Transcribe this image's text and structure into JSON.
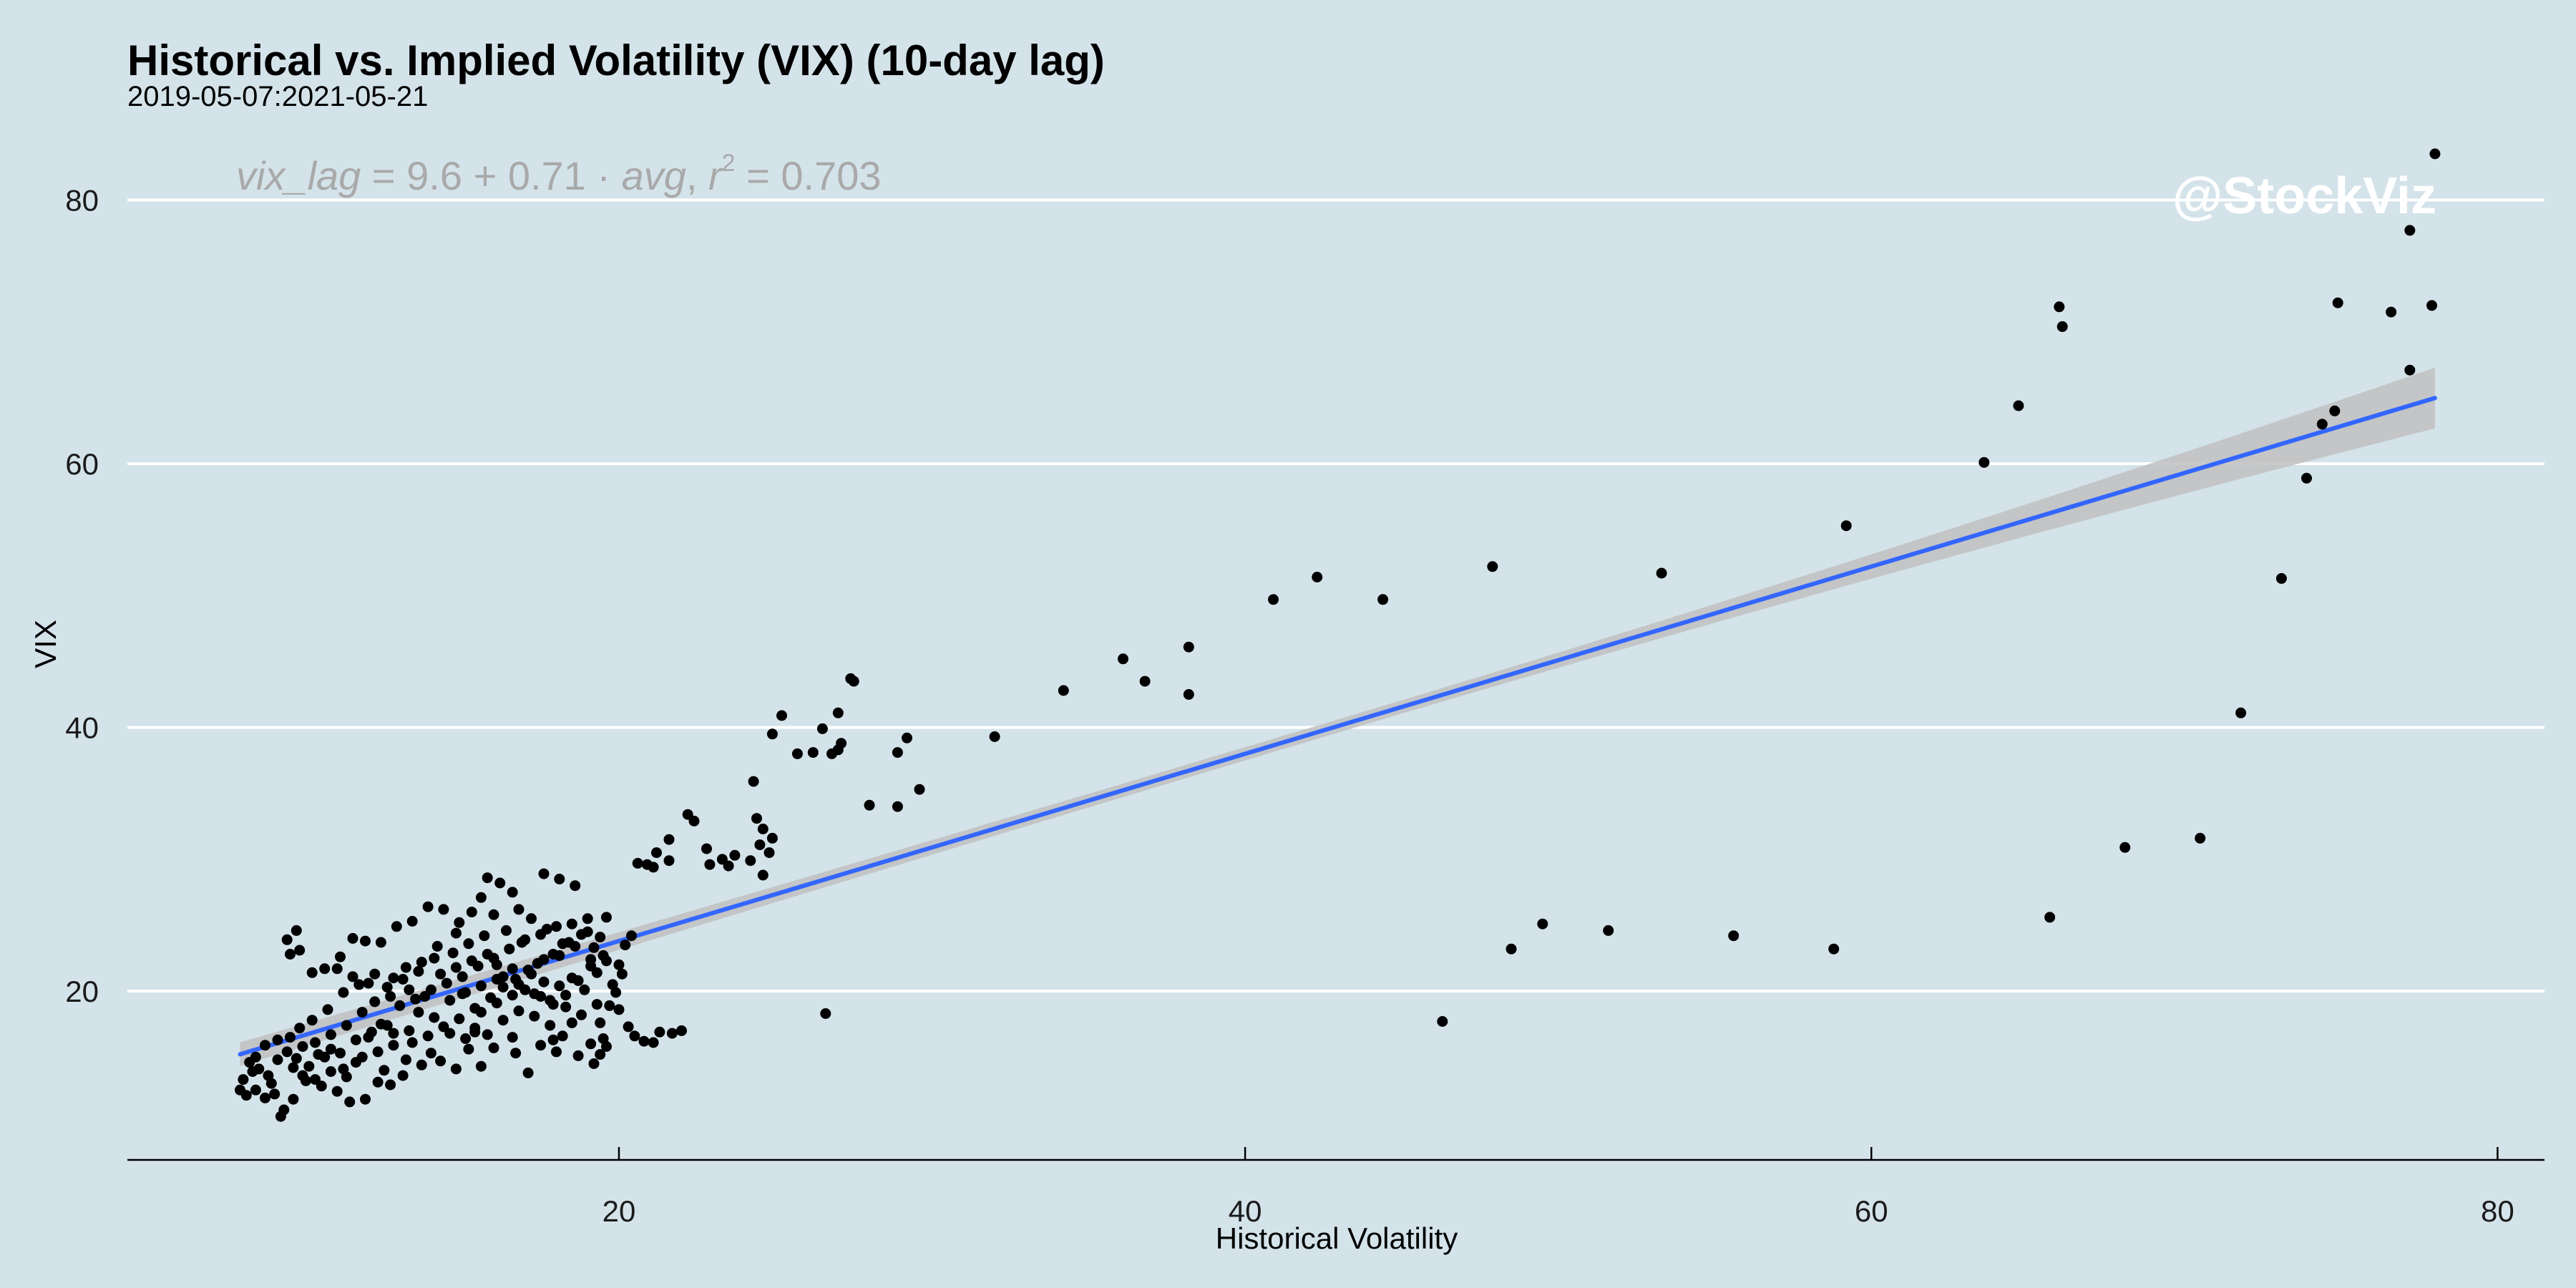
{
  "chart_data": {
    "type": "scatter",
    "title": "Historical vs. Implied Volatility (VIX) (10-day lag)",
    "subtitle": "2019-05-07:2021-05-21",
    "xlabel": "Historical Volatility",
    "ylabel": "VIX",
    "xlim": [
      4.3,
      81.5
    ],
    "ylim": [
      7.2,
      85.4
    ],
    "x_ticks": [
      20,
      40,
      60,
      80
    ],
    "y_ticks": [
      20,
      40,
      60,
      80
    ],
    "grid": "horizontal major lines",
    "equation": {
      "lhs": "vix_lag",
      "rhs_prefix": "9.6 + 0.71 · ",
      "rhs_var": "avg",
      "r2_label": "r",
      "r2_exp": "2",
      "r2_value": " = 0.703"
    },
    "watermark": "@StockViz",
    "regression": {
      "intercept": 9.6,
      "slope": 0.71,
      "x_range": [
        7.9,
        78.0
      ],
      "band_halfwidth_start": 0.9,
      "band_halfwidth_mid": 0.5,
      "band_halfwidth_end": 2.3
    },
    "colors": {
      "background": "#d4e3ea",
      "grid": "#ffffff",
      "point": "#000000",
      "line": "#3366ff",
      "band": "#bfbfbf",
      "equation": "#a9a9a9"
    },
    "points": [
      [
        78.0,
        83.5
      ],
      [
        77.2,
        77.7
      ],
      [
        77.9,
        72.0
      ],
      [
        76.6,
        71.5
      ],
      [
        74.9,
        72.2
      ],
      [
        66.0,
        71.9
      ],
      [
        66.1,
        70.4
      ],
      [
        77.2,
        67.1
      ],
      [
        64.7,
        64.4
      ],
      [
        74.8,
        64.0
      ],
      [
        74.4,
        63.0
      ],
      [
        63.6,
        60.1
      ],
      [
        73.9,
        58.9
      ],
      [
        59.2,
        55.3
      ],
      [
        47.9,
        52.2
      ],
      [
        53.3,
        51.7
      ],
      [
        42.3,
        51.4
      ],
      [
        73.1,
        51.3
      ],
      [
        40.9,
        49.7
      ],
      [
        44.4,
        49.7
      ],
      [
        36.1,
        45.2
      ],
      [
        36.8,
        43.5
      ],
      [
        38.2,
        46.1
      ],
      [
        38.2,
        42.5
      ],
      [
        34.2,
        42.8
      ],
      [
        71.8,
        41.1
      ],
      [
        32.0,
        39.3
      ],
      [
        27.5,
        43.5
      ],
      [
        27.4,
        43.7
      ],
      [
        27.0,
        41.1
      ],
      [
        25.2,
        40.9
      ],
      [
        24.9,
        39.5
      ],
      [
        26.5,
        39.9
      ],
      [
        27.1,
        38.8
      ],
      [
        27.0,
        38.3
      ],
      [
        26.8,
        38.0
      ],
      [
        26.2,
        38.1
      ],
      [
        25.7,
        38.0
      ],
      [
        28.9,
        38.1
      ],
      [
        29.2,
        39.2
      ],
      [
        29.6,
        35.3
      ],
      [
        28.0,
        34.1
      ],
      [
        28.9,
        34.0
      ],
      [
        24.3,
        35.9
      ],
      [
        70.5,
        31.6
      ],
      [
        68.1,
        30.9
      ],
      [
        65.7,
        25.6
      ],
      [
        49.5,
        25.1
      ],
      [
        51.6,
        24.6
      ],
      [
        55.6,
        24.2
      ],
      [
        58.8,
        23.2
      ],
      [
        48.5,
        23.2
      ],
      [
        46.3,
        17.7
      ],
      [
        26.6,
        18.3
      ],
      [
        24.4,
        33.1
      ],
      [
        24.6,
        32.3
      ],
      [
        24.5,
        31.1
      ],
      [
        24.8,
        30.5
      ],
      [
        24.9,
        31.6
      ],
      [
        24.2,
        29.9
      ],
      [
        23.7,
        30.3
      ],
      [
        23.3,
        30.0
      ],
      [
        22.9,
        29.6
      ],
      [
        22.2,
        33.4
      ],
      [
        22.4,
        32.9
      ],
      [
        21.6,
        31.5
      ],
      [
        21.2,
        30.5
      ],
      [
        21.6,
        29.9
      ],
      [
        22.8,
        30.8
      ],
      [
        20.6,
        29.7
      ],
      [
        20.9,
        29.6
      ],
      [
        21.1,
        29.4
      ],
      [
        24.6,
        28.8
      ],
      [
        23.5,
        29.5
      ],
      [
        20.4,
        24.2
      ],
      [
        20.2,
        23.5
      ],
      [
        20.0,
        22.0
      ],
      [
        19.8,
        20.5
      ],
      [
        20.1,
        21.3
      ],
      [
        20.0,
        18.6
      ],
      [
        20.3,
        17.3
      ],
      [
        20.5,
        16.6
      ],
      [
        20.8,
        16.2
      ],
      [
        21.3,
        16.9
      ],
      [
        21.7,
        16.8
      ],
      [
        22.0,
        17.0
      ],
      [
        21.1,
        16.1
      ],
      [
        19.6,
        15.8
      ],
      [
        19.5,
        16.4
      ],
      [
        19.4,
        15.2
      ],
      [
        19.2,
        14.5
      ],
      [
        18.5,
        17.6
      ],
      [
        18.0,
        15.4
      ],
      [
        17.5,
        15.9
      ],
      [
        17.1,
        13.8
      ],
      [
        16.6,
        16.5
      ],
      [
        16.0,
        15.7
      ],
      [
        15.6,
        14.3
      ],
      [
        15.2,
        15.6
      ],
      [
        14.8,
        14.1
      ],
      [
        14.3,
        14.7
      ],
      [
        13.7,
        14.4
      ],
      [
        13.1,
        13.6
      ],
      [
        12.7,
        12.9
      ],
      [
        12.3,
        13.1
      ],
      [
        11.9,
        11.8
      ],
      [
        11.4,
        11.6
      ],
      [
        11.0,
        12.4
      ],
      [
        10.5,
        12.8
      ],
      [
        10.0,
        13.2
      ],
      [
        9.6,
        11.8
      ],
      [
        9.3,
        11.0
      ],
      [
        9.2,
        10.5
      ],
      [
        9.0,
        12.2
      ],
      [
        8.7,
        11.9
      ],
      [
        8.4,
        12.5
      ],
      [
        8.1,
        12.1
      ],
      [
        7.9,
        12.5
      ],
      [
        8.0,
        13.3
      ],
      [
        8.3,
        13.9
      ],
      [
        8.5,
        14.1
      ],
      [
        8.8,
        13.6
      ],
      [
        9.1,
        14.8
      ],
      [
        9.4,
        15.4
      ],
      [
        9.7,
        14.9
      ],
      [
        10.1,
        14.3
      ],
      [
        10.4,
        15.2
      ],
      [
        10.8,
        15.6
      ],
      [
        11.2,
        14.1
      ],
      [
        11.6,
        14.6
      ],
      [
        12.0,
        16.5
      ],
      [
        12.4,
        17.5
      ],
      [
        12.8,
        16.8
      ],
      [
        13.3,
        17.0
      ],
      [
        13.6,
        18.4
      ],
      [
        14.1,
        18.0
      ],
      [
        14.6,
        19.3
      ],
      [
        15.0,
        19.8
      ],
      [
        15.4,
        18.7
      ],
      [
        15.9,
        19.5
      ],
      [
        16.3,
        20.3
      ],
      [
        16.7,
        20.9
      ],
      [
        17.2,
        21.3
      ],
      [
        17.6,
        20.7
      ],
      [
        18.1,
        20.4
      ],
      [
        18.5,
        21.0
      ],
      [
        18.9,
        20.1
      ],
      [
        19.3,
        21.4
      ],
      [
        19.6,
        22.3
      ],
      [
        19.2,
        23.3
      ],
      [
        18.8,
        24.3
      ],
      [
        18.4,
        23.7
      ],
      [
        17.9,
        22.8
      ],
      [
        17.4,
        22.1
      ],
      [
        16.9,
        23.7
      ],
      [
        16.4,
        24.6
      ],
      [
        16.0,
        25.8
      ],
      [
        15.6,
        27.1
      ],
      [
        15.8,
        28.6
      ],
      [
        16.2,
        28.2
      ],
      [
        16.6,
        27.5
      ],
      [
        17.6,
        28.9
      ],
      [
        18.1,
        28.5
      ],
      [
        18.6,
        28.0
      ],
      [
        19.0,
        25.5
      ],
      [
        19.6,
        25.6
      ],
      [
        14.9,
        25.2
      ],
      [
        14.4,
        26.2
      ],
      [
        13.9,
        26.4
      ],
      [
        13.4,
        25.3
      ],
      [
        12.9,
        24.9
      ],
      [
        12.4,
        23.7
      ],
      [
        11.9,
        23.8
      ],
      [
        11.5,
        24.0
      ],
      [
        11.1,
        22.6
      ],
      [
        10.6,
        21.7
      ],
      [
        10.2,
        21.4
      ],
      [
        9.8,
        23.1
      ],
      [
        9.5,
        22.8
      ],
      [
        9.4,
        23.9
      ],
      [
        9.7,
        24.6
      ],
      [
        11.0,
        21.7
      ],
      [
        11.5,
        21.1
      ],
      [
        12.0,
        20.6
      ],
      [
        12.6,
        20.3
      ],
      [
        13.1,
        20.9
      ],
      [
        13.6,
        21.5
      ],
      [
        14.1,
        22.5
      ],
      [
        14.7,
        22.9
      ],
      [
        15.2,
        23.6
      ],
      [
        15.7,
        24.2
      ],
      [
        16.1,
        22.0
      ],
      [
        16.6,
        21.7
      ],
      [
        17.0,
        20.1
      ],
      [
        17.5,
        19.6
      ],
      [
        17.9,
        19.0
      ],
      [
        18.3,
        19.7
      ],
      [
        18.7,
        20.8
      ],
      [
        19.1,
        21.9
      ],
      [
        19.5,
        22.7
      ],
      [
        18.2,
        23.6
      ],
      [
        17.7,
        24.7
      ],
      [
        17.2,
        25.5
      ],
      [
        16.8,
        26.2
      ],
      [
        15.3,
        26.0
      ],
      [
        14.8,
        24.4
      ],
      [
        14.2,
        23.4
      ],
      [
        13.7,
        22.2
      ],
      [
        13.2,
        21.8
      ],
      [
        12.7,
        19.6
      ],
      [
        12.2,
        19.2
      ],
      [
        11.8,
        18.4
      ],
      [
        11.3,
        17.4
      ],
      [
        10.8,
        16.7
      ],
      [
        10.3,
        16.1
      ],
      [
        9.9,
        15.8
      ],
      [
        9.5,
        16.5
      ],
      [
        9.1,
        16.3
      ],
      [
        8.7,
        15.9
      ],
      [
        8.4,
        15.0
      ],
      [
        8.2,
        14.6
      ],
      [
        9.9,
        13.6
      ],
      [
        10.3,
        13.3
      ],
      [
        10.8,
        13.9
      ],
      [
        11.3,
        13.5
      ],
      [
        11.8,
        15.0
      ],
      [
        12.3,
        15.4
      ],
      [
        12.8,
        15.9
      ],
      [
        13.4,
        16.1
      ],
      [
        13.9,
        16.6
      ],
      [
        14.4,
        17.3
      ],
      [
        14.9,
        17.9
      ],
      [
        15.4,
        17.2
      ],
      [
        15.8,
        16.7
      ],
      [
        16.3,
        17.8
      ],
      [
        16.8,
        18.5
      ],
      [
        17.3,
        18.1
      ],
      [
        17.8,
        17.4
      ],
      [
        18.2,
        16.6
      ],
      [
        18.7,
        15.1
      ],
      [
        19.1,
        16.0
      ],
      [
        19.4,
        17.6
      ],
      [
        19.7,
        18.9
      ],
      [
        19.9,
        19.9
      ],
      [
        13.0,
        18.9
      ],
      [
        13.5,
        19.4
      ],
      [
        14.0,
        20.1
      ],
      [
        14.5,
        20.6
      ],
      [
        15.0,
        21.1
      ],
      [
        15.5,
        21.9
      ],
      [
        16.0,
        22.5
      ],
      [
        16.5,
        23.2
      ],
      [
        17.0,
        23.9
      ],
      [
        17.5,
        24.3
      ],
      [
        18.0,
        24.9
      ],
      [
        18.5,
        25.1
      ],
      [
        19.0,
        24.5
      ],
      [
        19.4,
        24.1
      ],
      [
        14.3,
        21.3
      ],
      [
        14.8,
        21.8
      ],
      [
        15.3,
        22.3
      ],
      [
        15.8,
        22.8
      ],
      [
        16.3,
        21.1
      ],
      [
        16.8,
        20.5
      ],
      [
        17.3,
        19.8
      ],
      [
        17.8,
        19.3
      ],
      [
        18.3,
        18.8
      ],
      [
        18.8,
        18.2
      ],
      [
        19.3,
        19.0
      ],
      [
        15.1,
        19.9
      ],
      [
        15.6,
        20.4
      ],
      [
        16.1,
        20.9
      ],
      [
        13.8,
        19.6
      ],
      [
        13.3,
        20.1
      ],
      [
        12.8,
        21.0
      ],
      [
        12.2,
        21.3
      ],
      [
        11.7,
        20.5
      ],
      [
        11.2,
        19.9
      ],
      [
        10.7,
        18.6
      ],
      [
        10.2,
        17.8
      ],
      [
        9.8,
        17.2
      ],
      [
        11.6,
        16.3
      ],
      [
        12.1,
        16.9
      ],
      [
        12.6,
        17.4
      ],
      [
        14.6,
        16.8
      ],
      [
        15.1,
        16.4
      ],
      [
        15.6,
        18.4
      ],
      [
        16.1,
        19.1
      ],
      [
        16.6,
        19.7
      ],
      [
        17.1,
        21.6
      ],
      [
        17.6,
        22.4
      ],
      [
        18.1,
        22.7
      ],
      [
        18.6,
        23.4
      ],
      [
        19.1,
        22.4
      ],
      [
        10.6,
        15.0
      ],
      [
        11.1,
        15.3
      ],
      [
        9.6,
        14.2
      ],
      [
        8.9,
        13.0
      ],
      [
        13.2,
        14.8
      ],
      [
        12.5,
        14.0
      ],
      [
        14.0,
        15.3
      ],
      [
        15.4,
        16.9
      ],
      [
        16.7,
        15.3
      ],
      [
        17.9,
        16.3
      ]
    ]
  }
}
